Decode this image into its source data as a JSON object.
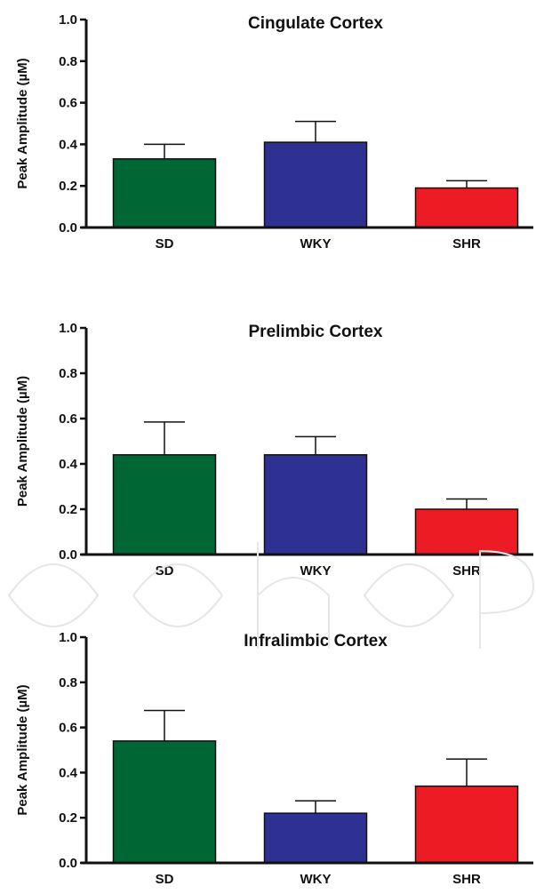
{
  "colors": {
    "SD": "#006633",
    "WKY": "#2E3192",
    "SHR": "#ED1C24",
    "axis": "#111111"
  },
  "chart_data": [
    {
      "type": "bar",
      "title": "Cingulate Cortex",
      "ylabel": "Peak Amplitude (µM)",
      "categories": [
        "SD",
        "WKY",
        "SHR"
      ],
      "values": [
        0.33,
        0.41,
        0.19
      ],
      "errors": [
        0.07,
        0.1,
        0.035
      ],
      "ylim": [
        0,
        1.0
      ],
      "yticks": [
        "0.0",
        "0.2",
        "0.4",
        "0.6",
        "0.8",
        "1.0"
      ]
    },
    {
      "type": "bar",
      "title": "Prelimbic Cortex",
      "ylabel": "Peak Amplitude (µM)",
      "categories": [
        "SD",
        "WKY",
        "SHR"
      ],
      "values": [
        0.44,
        0.44,
        0.2
      ],
      "errors": [
        0.145,
        0.08,
        0.045
      ],
      "ylim": [
        0,
        1.0
      ],
      "yticks": [
        "0.0",
        "0.2",
        "0.4",
        "0.6",
        "0.8",
        "1.0"
      ]
    },
    {
      "type": "bar",
      "title": "Infralimbic Cortex",
      "ylabel": "Peak Amplitude (µM)",
      "categories": [
        "SD",
        "WKY",
        "SHR"
      ],
      "values": [
        0.54,
        0.22,
        0.34
      ],
      "errors": [
        0.135,
        0.055,
        0.12
      ],
      "ylim": [
        0,
        1.0
      ],
      "yticks": [
        "0.0",
        "0.2",
        "0.4",
        "0.6",
        "0.8",
        "1.0"
      ]
    }
  ]
}
